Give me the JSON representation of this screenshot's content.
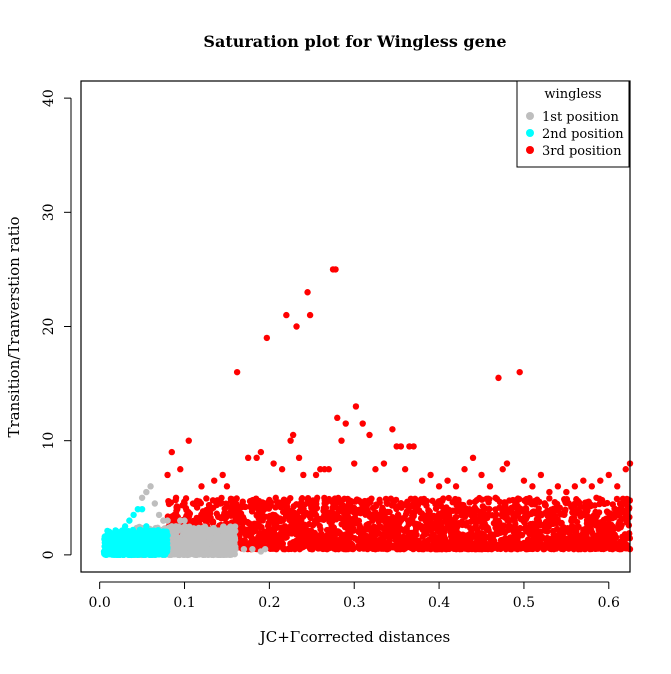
{
  "chart_data": {
    "type": "scatter",
    "title": "Saturation plot for Wingless gene",
    "xlabel": "JC+Γcorrected distances",
    "ylabel": "Transition/Tranverstion ratio",
    "xlim": [
      -0.022,
      0.625
    ],
    "ylim": [
      -1.5,
      41.5
    ],
    "x_ticks": [
      "0.0",
      "0.1",
      "0.2",
      "0.3",
      "0.4",
      "0.5",
      "0.6"
    ],
    "x_tick_values": [
      0,
      0.1,
      0.2,
      0.3,
      0.4,
      0.5,
      0.6
    ],
    "y_ticks": [
      "0",
      "10",
      "20",
      "30",
      "40"
    ],
    "y_tick_values": [
      0,
      10,
      20,
      30,
      40
    ],
    "grid": false,
    "legend": {
      "title": "wingless",
      "placement": "top-right",
      "entries": [
        "1st position",
        "2nd position",
        "3rd position"
      ]
    },
    "series": [
      {
        "name": "3rd position",
        "color": "#ff0000",
        "points": [
          [
            0.08,
            7
          ],
          [
            0.085,
            9
          ],
          [
            0.09,
            5
          ],
          [
            0.095,
            7.5
          ],
          [
            0.1,
            4.5
          ],
          [
            0.105,
            10
          ],
          [
            0.12,
            6
          ],
          [
            0.135,
            6.5
          ],
          [
            0.145,
            7
          ],
          [
            0.15,
            6
          ],
          [
            0.162,
            16
          ],
          [
            0.175,
            8.5
          ],
          [
            0.185,
            8.5
          ],
          [
            0.19,
            9
          ],
          [
            0.197,
            19
          ],
          [
            0.205,
            8
          ],
          [
            0.215,
            7.5
          ],
          [
            0.22,
            21
          ],
          [
            0.225,
            10
          ],
          [
            0.228,
            10.5
          ],
          [
            0.232,
            20
          ],
          [
            0.235,
            8.5
          ],
          [
            0.24,
            7
          ],
          [
            0.245,
            23
          ],
          [
            0.248,
            21
          ],
          [
            0.255,
            7
          ],
          [
            0.26,
            7.5
          ],
          [
            0.265,
            7.5
          ],
          [
            0.27,
            7.5
          ],
          [
            0.275,
            25
          ],
          [
            0.278,
            25
          ],
          [
            0.28,
            12
          ],
          [
            0.285,
            10
          ],
          [
            0.29,
            11.5
          ],
          [
            0.3,
            8
          ],
          [
            0.302,
            13
          ],
          [
            0.31,
            11.5
          ],
          [
            0.318,
            10.5
          ],
          [
            0.325,
            7.5
          ],
          [
            0.335,
            8
          ],
          [
            0.345,
            11
          ],
          [
            0.35,
            9.5
          ],
          [
            0.355,
            9.5
          ],
          [
            0.36,
            7.5
          ],
          [
            0.365,
            9.5
          ],
          [
            0.37,
            9.5
          ],
          [
            0.38,
            6.5
          ],
          [
            0.39,
            7
          ],
          [
            0.4,
            6
          ],
          [
            0.41,
            6.5
          ],
          [
            0.42,
            6
          ],
          [
            0.43,
            7.5
          ],
          [
            0.44,
            8.5
          ],
          [
            0.45,
            7
          ],
          [
            0.46,
            6
          ],
          [
            0.47,
            15.5
          ],
          [
            0.475,
            7.5
          ],
          [
            0.48,
            8
          ],
          [
            0.495,
            16
          ],
          [
            0.5,
            6.5
          ],
          [
            0.51,
            6
          ],
          [
            0.52,
            7
          ],
          [
            0.53,
            5.5
          ],
          [
            0.54,
            6
          ],
          [
            0.55,
            5.5
          ],
          [
            0.56,
            6
          ],
          [
            0.57,
            6.5
          ],
          [
            0.58,
            6
          ],
          [
            0.59,
            6.5
          ],
          [
            0.6,
            7
          ],
          [
            0.61,
            6
          ],
          [
            0.62,
            7.5
          ],
          [
            0.625,
            8
          ]
        ],
        "cloud": {
          "x_range": [
            0.08,
            0.625
          ],
          "y_range": [
            0.5,
            5
          ],
          "count": 2400
        }
      },
      {
        "name": "1st position",
        "color": "#bebebe",
        "points": [
          [
            0.05,
            5
          ],
          [
            0.055,
            5.5
          ],
          [
            0.06,
            6
          ],
          [
            0.065,
            4.5
          ],
          [
            0.07,
            3.5
          ],
          [
            0.075,
            3
          ],
          [
            0.08,
            3
          ],
          [
            0.085,
            2.5
          ],
          [
            0.09,
            2.5
          ],
          [
            0.095,
            3
          ],
          [
            0.1,
            3
          ],
          [
            0.11,
            2
          ],
          [
            0.12,
            1.5
          ],
          [
            0.13,
            1.5
          ],
          [
            0.14,
            1
          ],
          [
            0.15,
            1
          ],
          [
            0.16,
            0.5
          ],
          [
            0.17,
            0.5
          ],
          [
            0.18,
            0.5
          ],
          [
            0.19,
            0.3
          ],
          [
            0.195,
            0.5
          ]
        ],
        "cloud": {
          "x_range": [
            0.04,
            0.16
          ],
          "y_range": [
            0,
            2.5
          ],
          "count": 700
        }
      },
      {
        "name": "2nd position",
        "color": "#00ffff",
        "points": [
          [
            0.035,
            3
          ],
          [
            0.04,
            3.5
          ],
          [
            0.045,
            4
          ],
          [
            0.05,
            4
          ],
          [
            0.03,
            2.5
          ],
          [
            0.025,
            2
          ],
          [
            0.055,
            2.5
          ],
          [
            0.06,
            2
          ],
          [
            0.065,
            2
          ],
          [
            0.07,
            1.5
          ],
          [
            0.075,
            1.5
          ]
        ],
        "cloud": {
          "x_range": [
            0.005,
            0.08
          ],
          "y_range": [
            0,
            2.2
          ],
          "count": 450
        }
      }
    ]
  }
}
